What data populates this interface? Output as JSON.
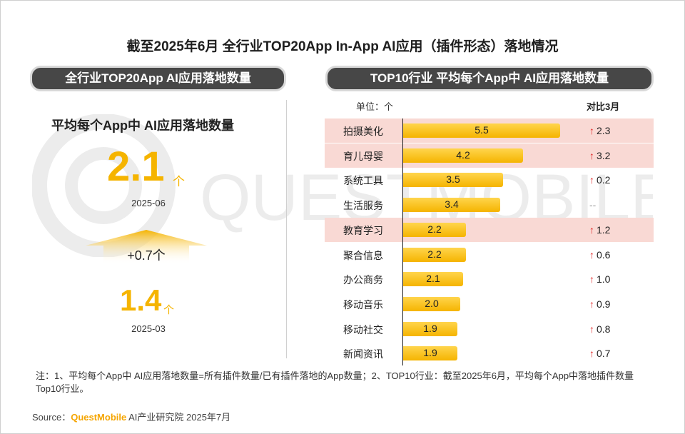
{
  "title": "截至2025年6月 全行业TOP20App In-App AI应用（插件形态）落地情况",
  "watermark_text": "QUESTMOBILE",
  "left_panel": {
    "header": "全行业TOP20App AI应用落地数量",
    "subtitle": "平均每个App中 AI应用落地数量",
    "current_value": "2.1",
    "current_unit": "个",
    "current_date": "2025-06",
    "delta": "+0.7个",
    "previous_value": "1.4",
    "previous_unit": "个",
    "previous_date": "2025-03"
  },
  "right_panel": {
    "header": "TOP10行业 平均每个App中 AI应用落地数量",
    "unit_label": "单位：个",
    "compare_header": "对比3月"
  },
  "chart_data": {
    "type": "bar",
    "orientation": "horizontal",
    "title": "TOP10行业 平均每个App中 AI应用落地数量",
    "unit": "个",
    "categories": [
      "拍摄美化",
      "育儿母婴",
      "系统工具",
      "生活服务",
      "教育学习",
      "聚合信息",
      "办公商务",
      "移动音乐",
      "移动社交",
      "新闻资讯"
    ],
    "values": [
      5.5,
      4.2,
      3.5,
      3.4,
      2.2,
      2.2,
      2.1,
      2.0,
      1.9,
      1.9
    ],
    "value_labels": [
      "5.5",
      "4.2",
      "3.5",
      "3.4",
      "2.2",
      "2.2",
      "2.1",
      "2.0",
      "1.9",
      "1.9"
    ],
    "compare_to_march": [
      "2.3",
      "3.2",
      "0.2",
      "--",
      "1.2",
      "0.6",
      "1.0",
      "0.9",
      "0.8",
      "0.7"
    ],
    "highlighted": [
      true,
      true,
      false,
      false,
      true,
      false,
      false,
      false,
      false,
      false
    ],
    "xlim": [
      0,
      6.5
    ],
    "colors": {
      "bar": "#f5b400",
      "bar_light": "#ffd54d",
      "highlight": "#f9d9d4",
      "up_arrow": "#e02020"
    }
  },
  "note": "注：1、平均每个App中 AI应用落地数量=所有插件数量/已有插件落地的App数量；2、TOP10行业：截至2025年6月，平均每个App中落地插件数量Top10行业。",
  "source": {
    "prefix": "Source：",
    "brand": "QuestMobile",
    "suffix": " AI产业研究院 2025年7月"
  }
}
